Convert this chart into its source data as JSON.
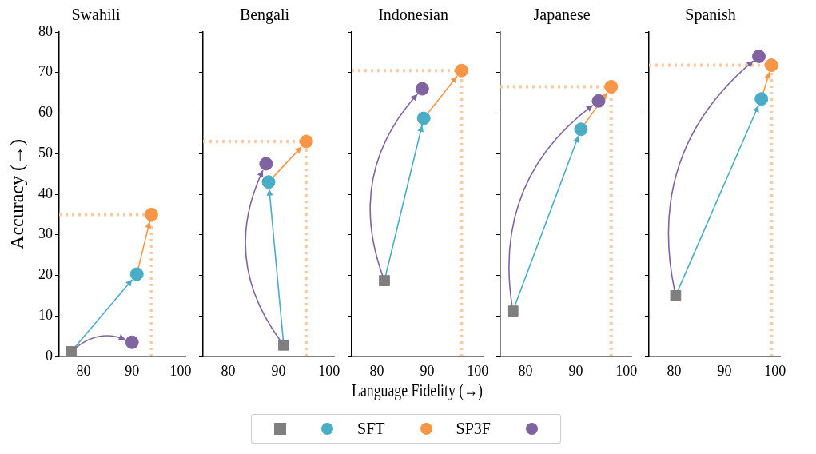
{
  "chart_data": [
    {
      "type": "scatter",
      "title": "Swahili",
      "ylabel": "Accuracy (→)",
      "xlim": [
        75,
        101
      ],
      "xticks": [
        80,
        90,
        100
      ],
      "ylim": [
        0,
        80
      ],
      "yticks": [
        0,
        10,
        20,
        30,
        40,
        50,
        60,
        70,
        80
      ],
      "legend": "bottom",
      "series": [
        {
          "color": "#7f7f7f",
          "marker": "square",
          "x": [
            77.5
          ],
          "values": [
            1.2
          ]
        },
        {
          "name": "SFT",
          "color": "#4bacc6",
          "marker": "circle",
          "x": [
            91
          ],
          "values": [
            20.3
          ]
        },
        {
          "name": "SP3F",
          "color": "#f79646",
          "marker": "circle",
          "x": [
            94
          ],
          "values": [
            35
          ]
        },
        {
          "color": "#8064a2",
          "marker": "circle",
          "x": [
            90
          ],
          "values": [
            3.5
          ]
        }
      ],
      "ref_lines": [
        {
          "axis": "x",
          "value": 94,
          "color": "#fdc9a0",
          "line_style": "dotted"
        },
        {
          "axis": "y",
          "value": 35,
          "color": "#fdc9a0",
          "line_style": "dotted"
        }
      ]
    },
    {
      "type": "scatter",
      "title": "Bengali",
      "xlim": [
        75,
        101
      ],
      "xticks": [
        80,
        90,
        100
      ],
      "ylim": [
        0,
        80
      ],
      "yticks": [
        0,
        10,
        20,
        30,
        40,
        50,
        60,
        70,
        80
      ],
      "tick_labels": "x",
      "series": [
        {
          "color": "#7f7f7f",
          "marker": "square",
          "x": [
            91
          ],
          "values": [
            2.8
          ]
        },
        {
          "color": "#4bacc6",
          "marker": "circle",
          "x": [
            88
          ],
          "values": [
            43
          ]
        },
        {
          "color": "#f79646",
          "marker": "circle",
          "x": [
            95.5
          ],
          "values": [
            53
          ]
        },
        {
          "color": "#8064a2",
          "marker": "circle",
          "x": [
            87.5
          ],
          "values": [
            47.5
          ]
        }
      ],
      "ref_lines": [
        {
          "axis": "x",
          "value": 95.5,
          "color": "#fdc9a0",
          "line_style": "dotted"
        },
        {
          "axis": "y",
          "value": 53,
          "color": "#fdc9a0",
          "line_style": "dotted"
        }
      ]
    },
    {
      "type": "scatter",
      "title": "Indonesian",
      "xlabel": "Language Fidelity (→)",
      "xlim": [
        75,
        101
      ],
      "xticks": [
        80,
        90,
        100
      ],
      "ylim": [
        0,
        80
      ],
      "yticks": [
        0,
        10,
        20,
        30,
        40,
        50,
        60,
        70,
        80
      ],
      "tick_labels": "x",
      "series": [
        {
          "color": "#7f7f7f",
          "marker": "square",
          "x": [
            81.5
          ],
          "values": [
            18.7
          ]
        },
        {
          "color": "#4bacc6",
          "marker": "circle",
          "x": [
            89.3
          ],
          "values": [
            58.7
          ]
        },
        {
          "color": "#f79646",
          "marker": "circle",
          "x": [
            96.8
          ],
          "values": [
            70.5
          ]
        },
        {
          "color": "#8064a2",
          "marker": "circle",
          "x": [
            89
          ],
          "values": [
            66
          ]
        }
      ],
      "ref_lines": [
        {
          "axis": "x",
          "value": 96.8,
          "color": "#fdc9a0",
          "line_style": "dotted"
        },
        {
          "axis": "y",
          "value": 70.5,
          "color": "#fdc9a0",
          "line_style": "dotted"
        }
      ]
    },
    {
      "type": "scatter",
      "title": "Japanese",
      "xlim": [
        75,
        101
      ],
      "xticks": [
        80,
        90,
        100
      ],
      "ylim": [
        0,
        80
      ],
      "yticks": [
        0,
        10,
        20,
        30,
        40,
        50,
        60,
        70,
        80
      ],
      "tick_labels": "x",
      "series": [
        {
          "color": "#7f7f7f",
          "marker": "square",
          "x": [
            77.5
          ],
          "values": [
            11.2
          ]
        },
        {
          "color": "#4bacc6",
          "marker": "circle",
          "x": [
            91
          ],
          "values": [
            56
          ]
        },
        {
          "color": "#f79646",
          "marker": "circle",
          "x": [
            97
          ],
          "values": [
            66.5
          ]
        },
        {
          "color": "#8064a2",
          "marker": "circle",
          "x": [
            94.5
          ],
          "values": [
            63
          ]
        }
      ],
      "ref_lines": [
        {
          "axis": "x",
          "value": 97,
          "color": "#fdc9a0",
          "line_style": "dotted"
        },
        {
          "axis": "y",
          "value": 66.5,
          "color": "#fdc9a0",
          "line_style": "dotted"
        }
      ]
    },
    {
      "type": "scatter",
      "title": "Spanish",
      "xlim": [
        75,
        101
      ],
      "xticks": [
        80,
        90,
        100
      ],
      "ylim": [
        0,
        80
      ],
      "yticks": [
        0,
        10,
        20,
        30,
        40,
        50,
        60,
        70,
        80
      ],
      "tick_labels": "x",
      "series": [
        {
          "color": "#7f7f7f",
          "marker": "square",
          "x": [
            80.3
          ],
          "values": [
            15
          ]
        },
        {
          "color": "#4bacc6",
          "marker": "circle",
          "x": [
            97.3
          ],
          "values": [
            63.5
          ]
        },
        {
          "color": "#f79646",
          "marker": "circle",
          "x": [
            99.3
          ],
          "values": [
            71.8
          ]
        },
        {
          "color": "#8064a2",
          "marker": "circle",
          "x": [
            96.8
          ],
          "values": [
            74
          ]
        }
      ],
      "ref_lines": [
        {
          "axis": "x",
          "value": 99.3,
          "color": "#fdc9a0",
          "line_style": "dotted"
        },
        {
          "axis": "y",
          "value": 71.8,
          "color": "#fdc9a0",
          "line_style": "dotted"
        }
      ]
    }
  ]
}
